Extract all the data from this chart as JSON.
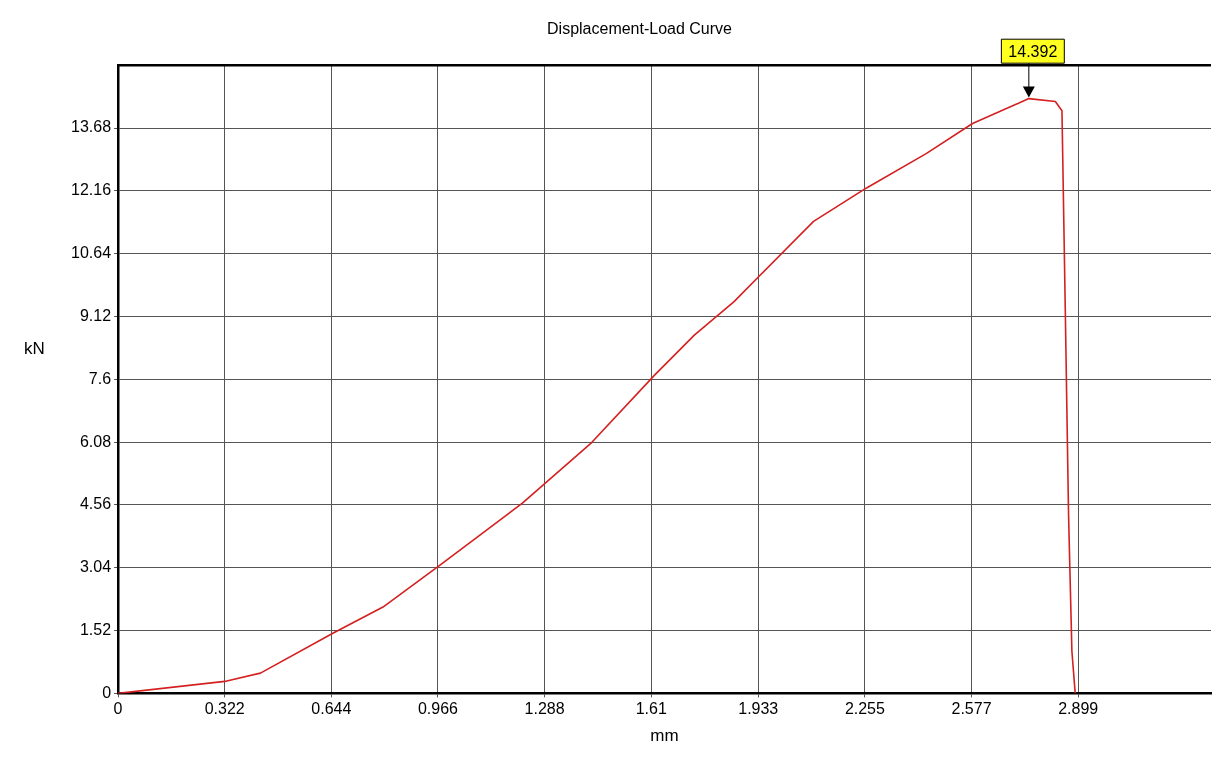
{
  "chart_data": {
    "type": "line",
    "title": "Displacement-Load Curve",
    "xlabel": "mm",
    "ylabel": "kN",
    "x": [
      0,
      0.322,
      0.43,
      0.65,
      0.8,
      0.97,
      1.22,
      1.29,
      1.43,
      1.62,
      1.74,
      1.86,
      1.94,
      2.1,
      2.26,
      2.44,
      2.58,
      2.75,
      2.83,
      2.85,
      2.86,
      2.87,
      2.88,
      2.89
    ],
    "series": [
      {
        "color": "#d42020",
        "values": [
          0,
          0.29,
          0.49,
          1.46,
          2.09,
          3.09,
          4.6,
          5.09,
          6.07,
          7.7,
          8.67,
          9.48,
          10.13,
          11.42,
          12.23,
          13.06,
          13.79,
          14.392,
          14.32,
          14.1,
          9.3,
          4.29,
          1.02,
          0
        ]
      }
    ],
    "xlim": [
      0,
      3.3
    ],
    "xticks": [
      0,
      0.322,
      0.644,
      0.966,
      1.288,
      1.61,
      1.933,
      2.255,
      2.577,
      2.899
    ],
    "ylim": [
      0,
      15.2
    ],
    "yticks": [
      0,
      1.52,
      3.04,
      4.56,
      6.08,
      7.6,
      9.12,
      10.64,
      12.16,
      13.68
    ],
    "grid": true,
    "legend": false,
    "marker": "none",
    "line_style": "solid",
    "annotations": [
      {
        "text": "14.392",
        "x": 2.75,
        "y": 14.392
      }
    ]
  }
}
